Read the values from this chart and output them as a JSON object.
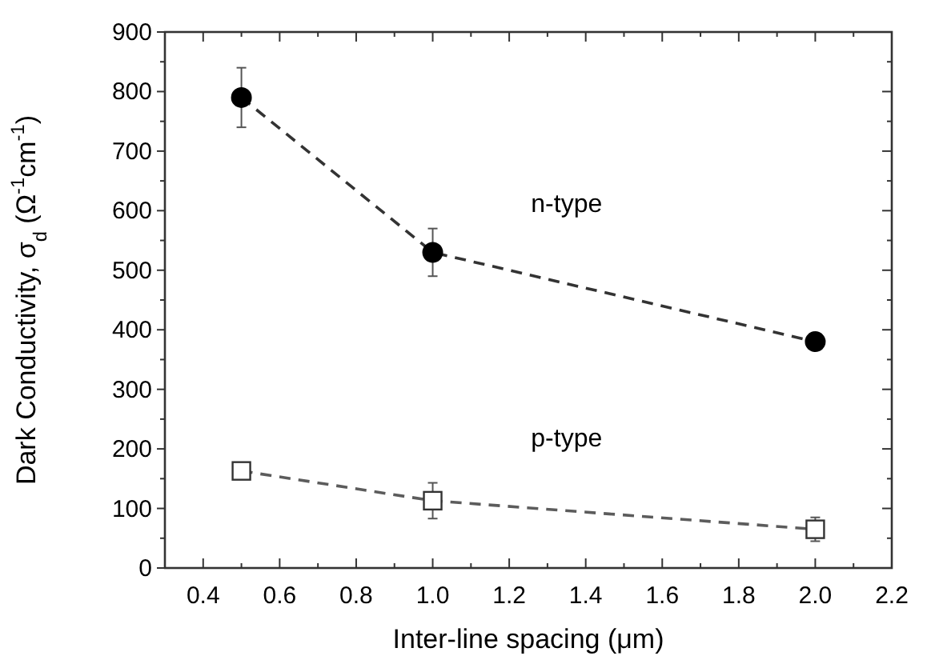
{
  "chart_data": {
    "type": "line",
    "xlabel": "Inter-line spacing (μm)",
    "ylabel": "Dark Conductivity, σ$_{d}$ (Ω$^{-1}$cm$^{-1}$)",
    "xlim": [
      0.3,
      2.2
    ],
    "ylim": [
      0,
      900
    ],
    "xticks": [
      0.4,
      0.6,
      0.8,
      {
        "value": 1,
        "label": "1.0"
      },
      1.2,
      1.4,
      1.6,
      1.8,
      {
        "value": 2,
        "label": "2.0"
      },
      2.2
    ],
    "yticks": [
      0,
      100,
      200,
      300,
      400,
      500,
      600,
      700,
      800,
      900
    ],
    "line_style": "dashed",
    "series": [
      {
        "name": "n-type",
        "color": "#000000",
        "marker": "circle",
        "x": [
          0.5,
          1.0,
          2.0
        ],
        "values": [
          790,
          530,
          380
        ],
        "errors": [
          50,
          40,
          10
        ]
      },
      {
        "name": "p-type",
        "color": "#333333",
        "marker": "square",
        "x": [
          0.5,
          1.0,
          2.0
        ],
        "values": [
          163,
          113,
          65
        ],
        "errors": [
          10,
          30,
          20
        ]
      }
    ]
  }
}
